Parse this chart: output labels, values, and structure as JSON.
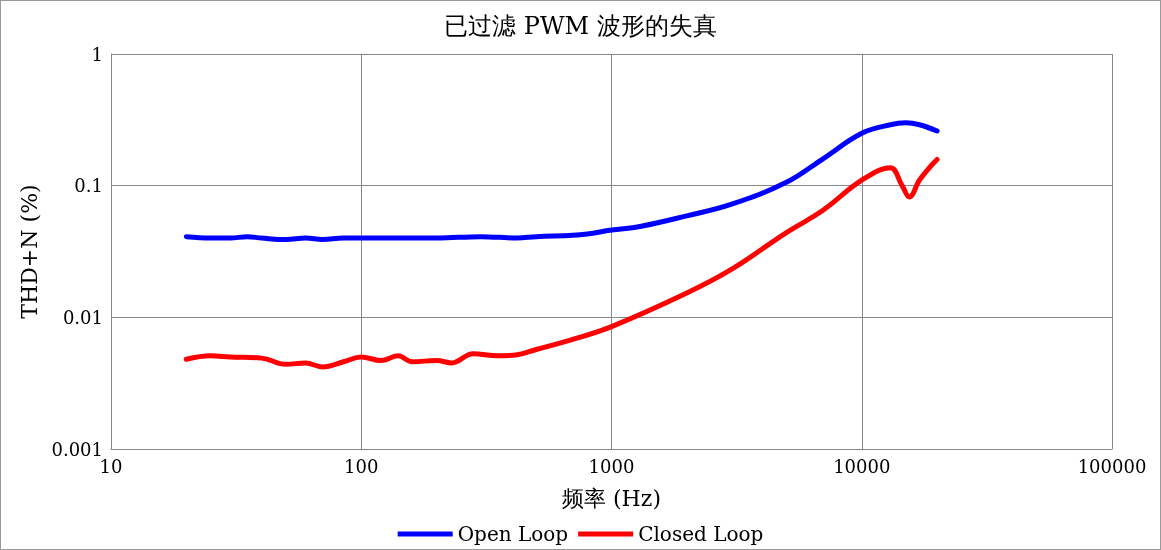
{
  "chart_data": {
    "type": "line",
    "title": "已过滤 PWM 波形的失真",
    "xlabel": "频率 (Hz)",
    "ylabel": "THD+N (%)",
    "log": "xy",
    "grid": true,
    "legend": "bottom",
    "marker": "none",
    "line_style": "solid",
    "xlim": [
      10,
      100000
    ],
    "xticks": [
      10,
      100,
      1000,
      10000,
      100000
    ],
    "ylim": [
      0.001,
      1
    ],
    "yticks": [
      0.001,
      0.01,
      0.1,
      1
    ],
    "series": [
      {
        "name": "Open Loop",
        "color": "#0000ff",
        "x": [
          20,
          25,
          30,
          35,
          40,
          50,
          60,
          70,
          85,
          100,
          140,
          200,
          300,
          420,
          500,
          700,
          800,
          1000,
          1300,
          2000,
          3000,
          5000,
          7000,
          10000,
          13000,
          15000,
          17000,
          20000
        ],
        "values": [
          0.041,
          0.04,
          0.04,
          0.041,
          0.04,
          0.039,
          0.04,
          0.039,
          0.04,
          0.04,
          0.04,
          0.04,
          0.041,
          0.04,
          0.041,
          0.042,
          0.043,
          0.046,
          0.049,
          0.059,
          0.072,
          0.106,
          0.16,
          0.25,
          0.29,
          0.3,
          0.29,
          0.26
        ]
      },
      {
        "name": "Closed Loop",
        "color": "#ff0000",
        "x": [
          20,
          25,
          30,
          40,
          50,
          60,
          70,
          85,
          100,
          120,
          140,
          160,
          200,
          230,
          280,
          350,
          420,
          500,
          700,
          1000,
          2000,
          3000,
          5000,
          7000,
          10000,
          13000,
          14500,
          15500,
          17000,
          18500,
          20000
        ],
        "values": [
          0.0048,
          0.0051,
          0.005,
          0.0049,
          0.0044,
          0.0045,
          0.0042,
          0.0046,
          0.005,
          0.0047,
          0.0051,
          0.0046,
          0.0047,
          0.0045,
          0.0053,
          0.0051,
          0.0052,
          0.0057,
          0.0068,
          0.0085,
          0.0153,
          0.023,
          0.044,
          0.065,
          0.11,
          0.137,
          0.1,
          0.082,
          0.11,
          0.135,
          0.158
        ]
      }
    ]
  }
}
